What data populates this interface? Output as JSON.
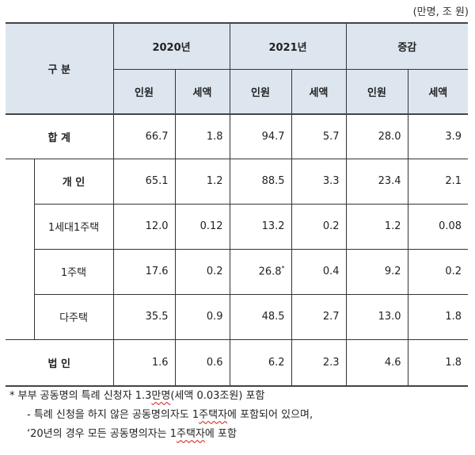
{
  "unit": "(만명, 조 원)",
  "header": {
    "category": "구  분",
    "year1": "2020년",
    "year2": "2021년",
    "change": "증감",
    "persons": "인원",
    "tax": "세액"
  },
  "rows": {
    "total": {
      "label": "합  계",
      "v": [
        "66.7",
        "1.8",
        "94.7",
        "5.7",
        "28.0",
        "3.9"
      ]
    },
    "indiv": {
      "label": "개  인",
      "v": [
        "65.1",
        "1.2",
        "88.5",
        "3.3",
        "23.4",
        "2.1"
      ]
    },
    "one_household": {
      "label": "1세대1주택",
      "v": [
        "12.0",
        "0.12",
        "13.2",
        "0.2",
        "1.2",
        "0.08"
      ]
    },
    "one_house": {
      "label": "1주택",
      "v": [
        "17.6",
        "0.2",
        "26.8",
        "0.4",
        "9.2",
        "0.2"
      ],
      "mark": "*"
    },
    "multi": {
      "label": "다주택",
      "v": [
        "35.5",
        "0.9",
        "48.5",
        "2.7",
        "13.0",
        "1.8"
      ]
    },
    "corp": {
      "label": "법  인",
      "v": [
        "1.6",
        "0.6",
        "6.2",
        "2.3",
        "4.6",
        "1.8"
      ]
    }
  },
  "footnotes": {
    "line1_pre": "* 부부 공동명의 특례 신청자 1.3",
    "line1_mark": "만명",
    "line1_post": "(세액 0.03조원) 포함",
    "line2_pre": "- 특례 신청을 하지 않은 공동명의자도 1",
    "line2_mark": "주택자",
    "line2_post": "에 포함되어 있으며,",
    "line3_pre": "‘20년의 경우 모든 공동명의자는 1",
    "line3_mark": "주택자",
    "line3_post": "에 포함"
  }
}
